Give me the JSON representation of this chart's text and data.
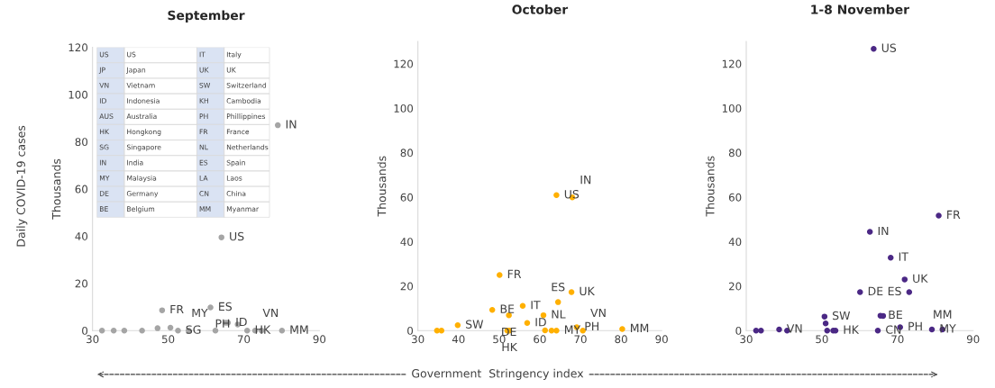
{
  "chart_data": [
    {
      "type": "scatter",
      "title": "September",
      "ylabel": "Thousands",
      "xlim": [
        30,
        90
      ],
      "xticks": [
        30,
        50,
        70,
        90
      ],
      "ylim": [
        0,
        120
      ],
      "yticks": [
        0,
        20,
        40,
        60,
        80,
        100,
        120
      ],
      "marker": "circle",
      "grid": false,
      "annotations": [
        "US",
        "US",
        "IT",
        "Italy",
        "JP",
        "Japan",
        "UK",
        "UK",
        "VN",
        "Vietnam",
        "SW",
        "Switzerland",
        "ID",
        "Indonesia",
        "KH",
        "Cambodia",
        "AUS",
        "Australia",
        "PH",
        "Phillippines",
        "HK",
        "Hongkong",
        "FR",
        "France",
        "SG",
        "Singapore",
        "NL",
        "Netherlands",
        "IN",
        "India",
        "ES",
        "Spain",
        "MY",
        "Malaysia",
        "LA",
        "Laos",
        "DE",
        "Germany",
        "CN",
        "China",
        "BE",
        "Belgium",
        "MM",
        "Myanmar"
      ],
      "series": [
        {
          "color": "#a5a5a5",
          "x": [
            79,
            64.1,
            48.4,
            61.2,
            65.2,
            65.8,
            68.4,
            32.5,
            35.6,
            38.4,
            43.1,
            47.2,
            50.6,
            52.6,
            55.4,
            62.5,
            70.9,
            73.0,
            74.7,
            80.1
          ],
          "values": [
            87,
            39.5,
            8.6,
            9.8,
            3.3,
            3.3,
            2.6,
            0,
            0,
            0,
            0,
            1,
            1.2,
            0,
            0,
            0,
            0,
            0,
            0,
            0
          ],
          "value_labels": [
            "IN",
            "US",
            "FR",
            "ES",
            null,
            "ID",
            "PH",
            null,
            null,
            null,
            null,
            null,
            null,
            "SG",
            null,
            "MY",
            "HK",
            "VN",
            null,
            "MM"
          ]
        }
      ]
    },
    {
      "type": "scatter",
      "title": "October",
      "ylabel": "Thousands",
      "xlim": [
        30,
        90
      ],
      "xticks": [
        30,
        40,
        50,
        60,
        70,
        80,
        90
      ],
      "ylim": [
        0,
        130
      ],
      "yticks": [
        0,
        20,
        40,
        60,
        80,
        100,
        120
      ],
      "marker": "circle",
      "grid": false,
      "series": [
        {
          "color": "#ffb000",
          "x": [
            64.1,
            68.0,
            50.1,
            67.8,
            64.5,
            55.8,
            48.3,
            52.4,
            60.9,
            56.9,
            39.8,
            69.1,
            80.3,
            34.7,
            35.8,
            52.0,
            52.5,
            61.3,
            62.9,
            64.1,
            70.6
          ],
          "values": [
            60.9,
            59.9,
            25.0,
            17.3,
            12.8,
            11.1,
            9.3,
            6.9,
            6.9,
            3.4,
            2.4,
            1.5,
            0.7,
            0,
            0,
            0,
            0,
            0.1,
            0,
            0,
            0
          ],
          "value_labels": [
            "US",
            "IN",
            "FR",
            "UK",
            "ES",
            "IT",
            "BE",
            "DE",
            "NL",
            "ID",
            "SW",
            "PH",
            "MM",
            null,
            null,
            null,
            "HK",
            null,
            null,
            "MY",
            "VN"
          ]
        }
      ]
    },
    {
      "type": "scatter",
      "title": "1-8 November",
      "ylabel": "Thousands",
      "xlim": [
        30,
        90
      ],
      "xticks": [
        30,
        50,
        70,
        90
      ],
      "ylim": [
        0,
        130
      ],
      "yticks": [
        0,
        20,
        40,
        60,
        80,
        100,
        120
      ],
      "marker": "circle",
      "grid": false,
      "series": [
        {
          "color": "#4b2885",
          "x": [
            63.7,
            80.9,
            62.7,
            68.2,
            71.9,
            73.1,
            60.1,
            50.7,
            51.0,
            65.5,
            66.2,
            70.7,
            79.1,
            81.9,
            38.7,
            40.8,
            32.6,
            33.9,
            51.4,
            53.0,
            53.6,
            64.8
          ],
          "values": [
            126.7,
            51.7,
            44.4,
            32.8,
            23.0,
            17.3,
            17.3,
            6.3,
            3.2,
            6.7,
            6.6,
            1.5,
            0.5,
            0.5,
            0.5,
            0,
            0,
            0,
            0,
            0,
            0,
            0
          ],
          "value_labels": [
            "US",
            "FR",
            "IN",
            "IT",
            "UK",
            "ES",
            "DE",
            "SW",
            null,
            "BE",
            null,
            "PH",
            "MY",
            "MM",
            "VN",
            null,
            null,
            null,
            null,
            null,
            "HK",
            "CN"
          ]
        }
      ]
    },
    {
      "type": "other",
      "annotations": [
        "Daily COVID-19 cases",
        "Government  Stringency index"
      ]
    }
  ]
}
